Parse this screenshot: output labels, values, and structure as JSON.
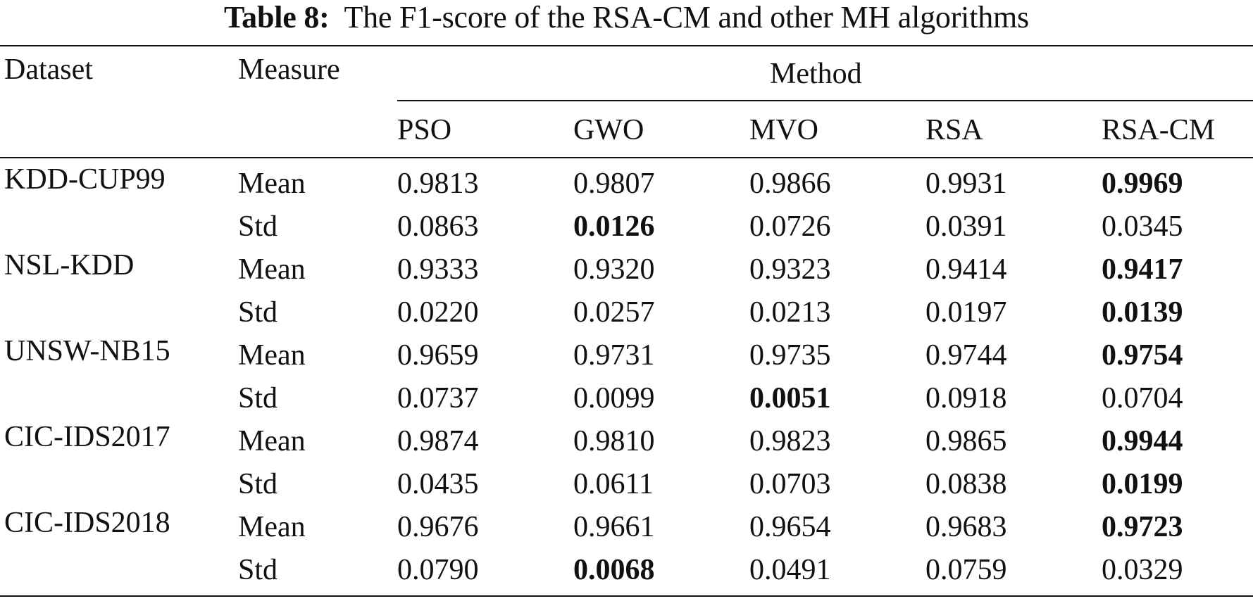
{
  "caption": {
    "label": "Table 8:",
    "text": "The F1-score of the RSA-CM and other MH algorithms"
  },
  "header": {
    "dataset": "Dataset",
    "measure": "Measure",
    "method": "Method",
    "methods": [
      "PSO",
      "GWO",
      "MVO",
      "RSA",
      "RSA-CM"
    ]
  },
  "rows": [
    {
      "dataset": "KDD-CUP99",
      "mean": [
        "0.9813",
        "0.9807",
        "0.9866",
        "0.9931",
        "0.9969"
      ],
      "std": [
        "0.0863",
        "0.0126",
        "0.0726",
        "0.0391",
        "0.0345"
      ]
    },
    {
      "dataset": "NSL-KDD",
      "mean": [
        "0.9333",
        "0.9320",
        "0.9323",
        "0.9414",
        "0.9417"
      ],
      "std": [
        "0.0220",
        "0.0257",
        "0.0213",
        "0.0197",
        "0.0139"
      ]
    },
    {
      "dataset": "UNSW-NB15",
      "mean": [
        "0.9659",
        "0.9731",
        "0.9735",
        "0.9744",
        "0.9754"
      ],
      "std": [
        "0.0737",
        "0.0099",
        "0.0051",
        "0.0918",
        "0.0704"
      ]
    },
    {
      "dataset": "CIC-IDS2017",
      "mean": [
        "0.9874",
        "0.9810",
        "0.9823",
        "0.9865",
        "0.9944"
      ],
      "std": [
        "0.0435",
        "0.0611",
        "0.0703",
        "0.0838",
        "0.0199"
      ]
    },
    {
      "dataset": "CIC-IDS2018",
      "mean": [
        "0.9676",
        "0.9661",
        "0.9654",
        "0.9683",
        "0.9723"
      ],
      "std": [
        "0.0790",
        "0.0068",
        "0.0491",
        "0.0759",
        "0.0329"
      ]
    }
  ],
  "labels": {
    "mean": "Mean",
    "std": "Std"
  },
  "bold_cells": {
    "KDD-CUP99": {
      "mean": [
        4
      ],
      "std": [
        1
      ]
    },
    "NSL-KDD": {
      "mean": [
        4
      ],
      "std": [
        4
      ]
    },
    "UNSW-NB15": {
      "mean": [
        4
      ],
      "std": [
        2
      ]
    },
    "CIC-IDS2017": {
      "mean": [
        4
      ],
      "std": [
        4
      ]
    },
    "CIC-IDS2018": {
      "mean": [
        4
      ],
      "std": [
        1
      ]
    }
  }
}
